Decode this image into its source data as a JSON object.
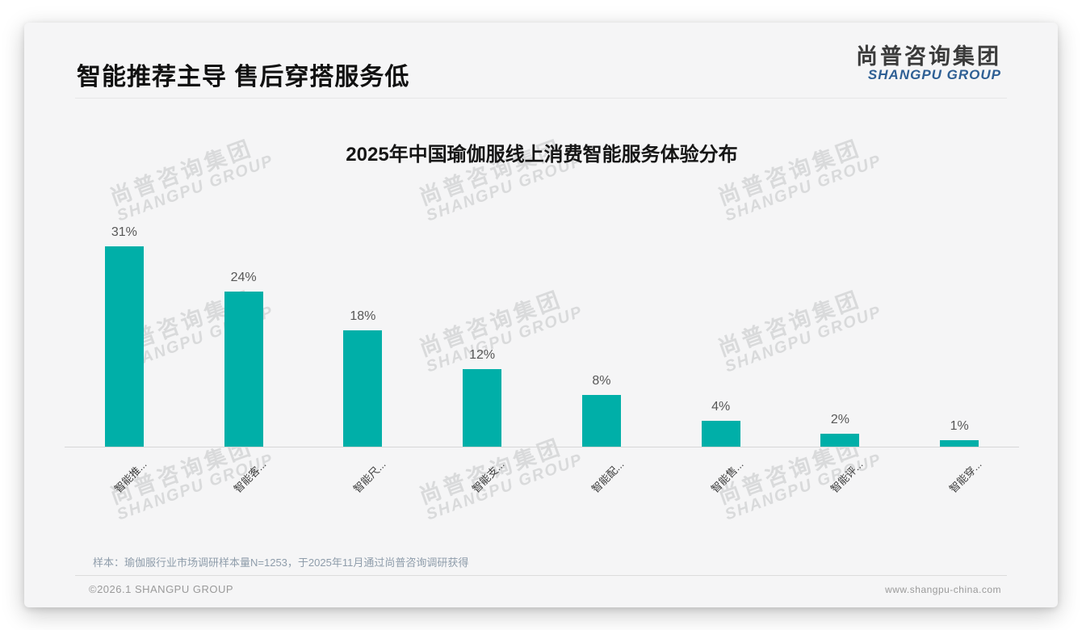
{
  "header": {
    "title": "智能推荐主导 售后穿搭服务低",
    "logo": {
      "cn": "尚普咨询集团",
      "en": "SHANGPU GROUP"
    }
  },
  "chart_data": {
    "type": "bar",
    "title": "2025年中国瑜伽服线上消费智能服务体验分布",
    "categories": [
      "智能推...",
      "智能客...",
      "智能尺...",
      "智能支...",
      "智能配...",
      "智能售...",
      "智能评...",
      "智能穿..."
    ],
    "values": [
      31,
      24,
      18,
      12,
      8,
      4,
      2,
      1
    ],
    "value_labels": [
      "31%",
      "24%",
      "18%",
      "12%",
      "8%",
      "4%",
      "2%",
      "1%"
    ],
    "bar_color": "#00afa8",
    "ylim": [
      0,
      33
    ],
    "grid": false,
    "legend": false,
    "xlabel": "",
    "ylabel": ""
  },
  "watermark": {
    "cn": "尚普咨询集团",
    "en": "SHANGPU GROUP"
  },
  "note": "样本：瑜伽服行业市场调研样本量N=1253，于2025年11月通过尚普咨询调研获得",
  "footer": {
    "left": "©2026.1 SHANGPU GROUP",
    "right": "www.shangpu-china.com"
  }
}
